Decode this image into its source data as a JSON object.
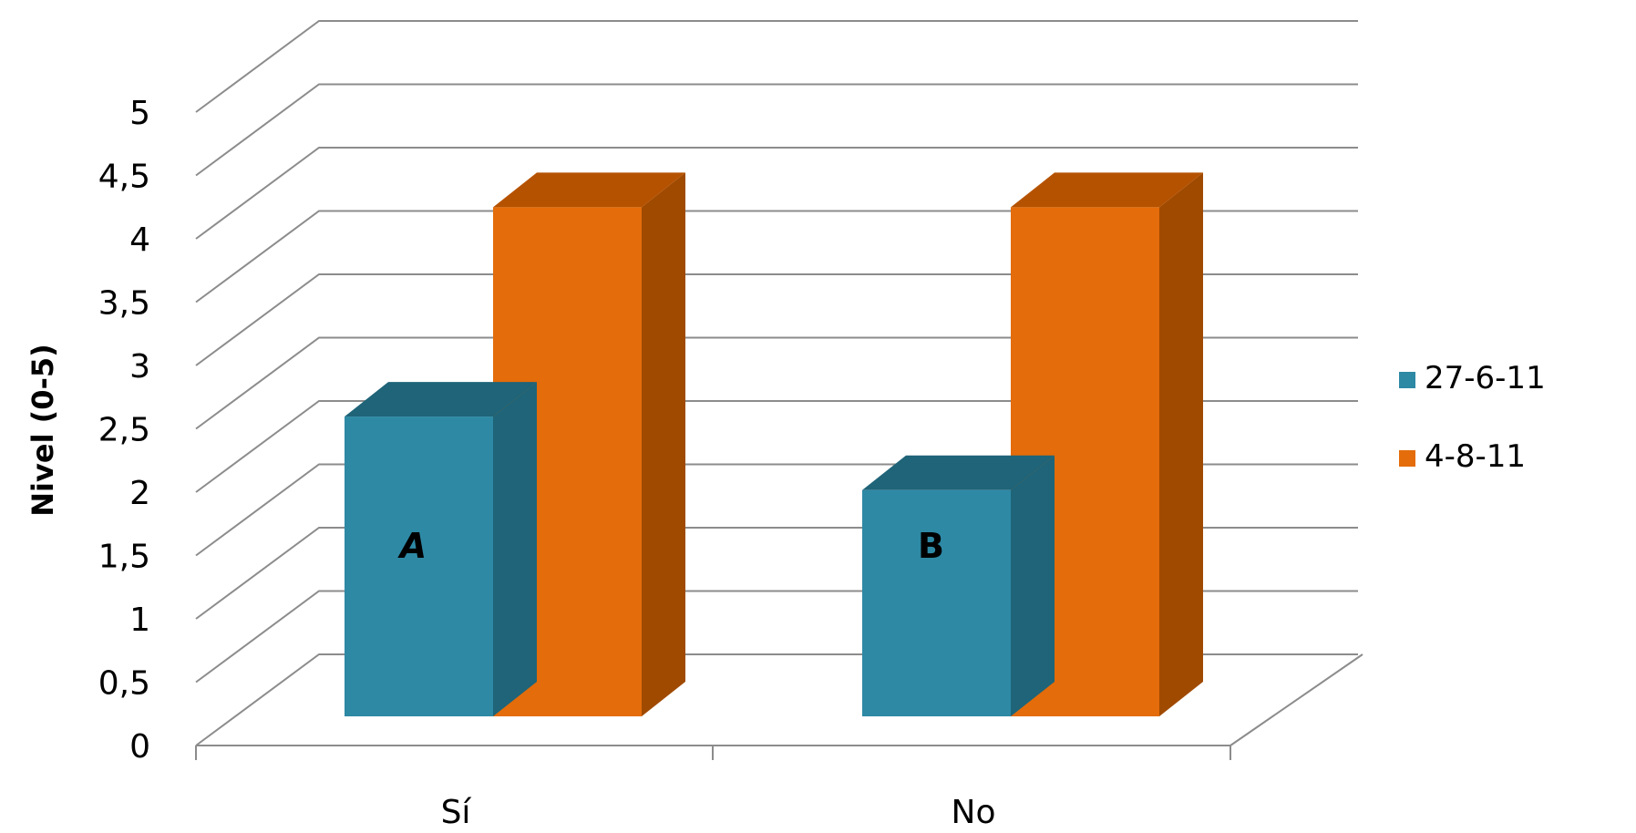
{
  "chart_data": {
    "type": "bar",
    "bar_style": "3d-clustered-column",
    "categories": [
      "Sí",
      "No"
    ],
    "series": [
      {
        "name": "27-6-11",
        "values": [
          2.65,
          2.0
        ],
        "color": "#2e89a5",
        "top_color": "#1f6478",
        "side_color": "#1f6478"
      },
      {
        "name": "4-8-11",
        "values": [
          4.5,
          4.5
        ],
        "color": "#e46c0a",
        "top_color": "#b55200",
        "side_color": "#a04a00"
      }
    ],
    "annotations": [
      {
        "text": "A",
        "category": "Sí",
        "series": "27-6-11",
        "italic": true
      },
      {
        "text": "B",
        "category": "No",
        "series": "27-6-11",
        "italic": false
      }
    ],
    "title": "",
    "xlabel": "",
    "ylabel": "Nivel (0-5)",
    "ylim": [
      0,
      5
    ],
    "yticks": [
      0,
      0.5,
      1,
      1.5,
      2,
      2.5,
      3,
      3.5,
      4,
      4.5,
      5
    ],
    "ytick_labels": [
      "0",
      "0,5",
      "1",
      "1,5",
      "2",
      "2,5",
      "3",
      "3,5",
      "4",
      "4,5",
      "5"
    ],
    "grid": true,
    "legend_position": "right"
  }
}
